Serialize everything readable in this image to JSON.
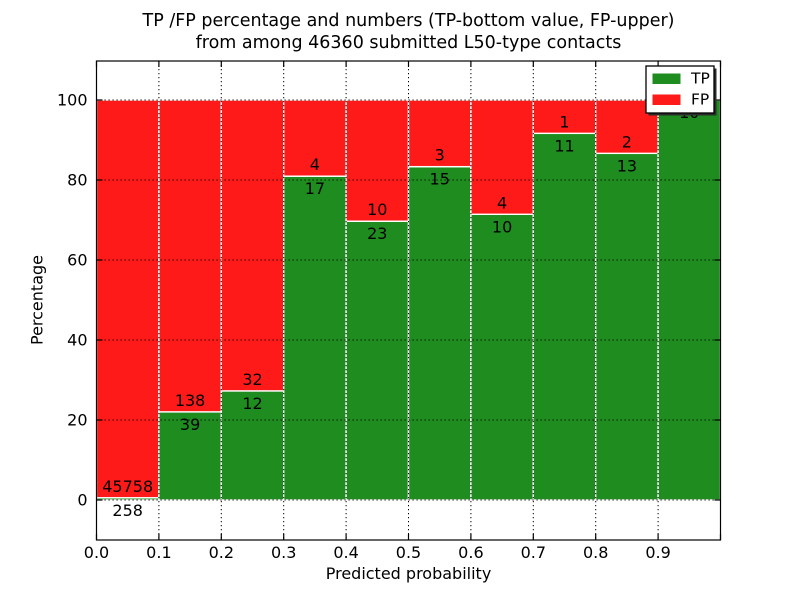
{
  "colors": {
    "tp_green": "#1f8c1f",
    "fp_red": "#ff1a1a",
    "background": "#ffffff",
    "grid": "#000000",
    "bar_edge": "#ffffff",
    "text": "#000000",
    "legend_shadow": "#2b2b2b"
  },
  "chart_data": {
    "type": "bar",
    "stacked": true,
    "title_line1": "TP /FP percentage and numbers (TP-bottom value, FP-upper)",
    "title_line2": "from among 46360 submitted L50-type contacts",
    "xlabel": "Predicted probability",
    "ylabel": "Percentage",
    "xlim": [
      0.0,
      1.0
    ],
    "ylim": [
      -10,
      110
    ],
    "x_tick_labels": [
      "0.0",
      "0.1",
      "0.2",
      "0.3",
      "0.4",
      "0.5",
      "0.6",
      "0.7",
      "0.8",
      "0.9"
    ],
    "x_tick_values": [
      0.0,
      0.1,
      0.2,
      0.3,
      0.4,
      0.5,
      0.6,
      0.7,
      0.8,
      0.9
    ],
    "y_tick_labels": [
      "0",
      "20",
      "40",
      "60",
      "80",
      "100"
    ],
    "y_tick_values": [
      0,
      20,
      40,
      60,
      80,
      100
    ],
    "grid": {
      "linestyle": "dotted",
      "color": "#000000"
    },
    "legend": {
      "position": "upper right",
      "shadow": true,
      "entries": [
        {
          "label": "TP",
          "color": "#1f8c1f"
        },
        {
          "label": "FP",
          "color": "#ff1a1a"
        }
      ]
    },
    "series_note": "each bin stacks TP (green, bottom) and FP (red, top) scaled to 100%",
    "bins": [
      {
        "x0": 0.0,
        "x1": 0.1,
        "tp": 258,
        "fp": 45758,
        "tp_label": "258",
        "fp_label": "45758"
      },
      {
        "x0": 0.1,
        "x1": 0.2,
        "tp": 39,
        "fp": 138,
        "tp_label": "39",
        "fp_label": "138"
      },
      {
        "x0": 0.2,
        "x1": 0.3,
        "tp": 12,
        "fp": 32,
        "tp_label": "12",
        "fp_label": "32"
      },
      {
        "x0": 0.3,
        "x1": 0.4,
        "tp": 17,
        "fp": 4,
        "tp_label": "17",
        "fp_label": "4"
      },
      {
        "x0": 0.4,
        "x1": 0.5,
        "tp": 23,
        "fp": 10,
        "tp_label": "23",
        "fp_label": "10"
      },
      {
        "x0": 0.5,
        "x1": 0.6,
        "tp": 15,
        "fp": 3,
        "tp_label": "15",
        "fp_label": "3"
      },
      {
        "x0": 0.6,
        "x1": 0.7,
        "tp": 10,
        "fp": 4,
        "tp_label": "10",
        "fp_label": "4"
      },
      {
        "x0": 0.7,
        "x1": 0.8,
        "tp": 11,
        "fp": 1,
        "tp_label": "11",
        "fp_label": "1"
      },
      {
        "x0": 0.8,
        "x1": 0.9,
        "tp": 13,
        "fp": 2,
        "tp_label": "13",
        "fp_label": "2"
      },
      {
        "x0": 0.9,
        "x1": 1.0,
        "tp": 10,
        "fp": 0,
        "tp_label": "10",
        "fp_label": ""
      }
    ]
  }
}
